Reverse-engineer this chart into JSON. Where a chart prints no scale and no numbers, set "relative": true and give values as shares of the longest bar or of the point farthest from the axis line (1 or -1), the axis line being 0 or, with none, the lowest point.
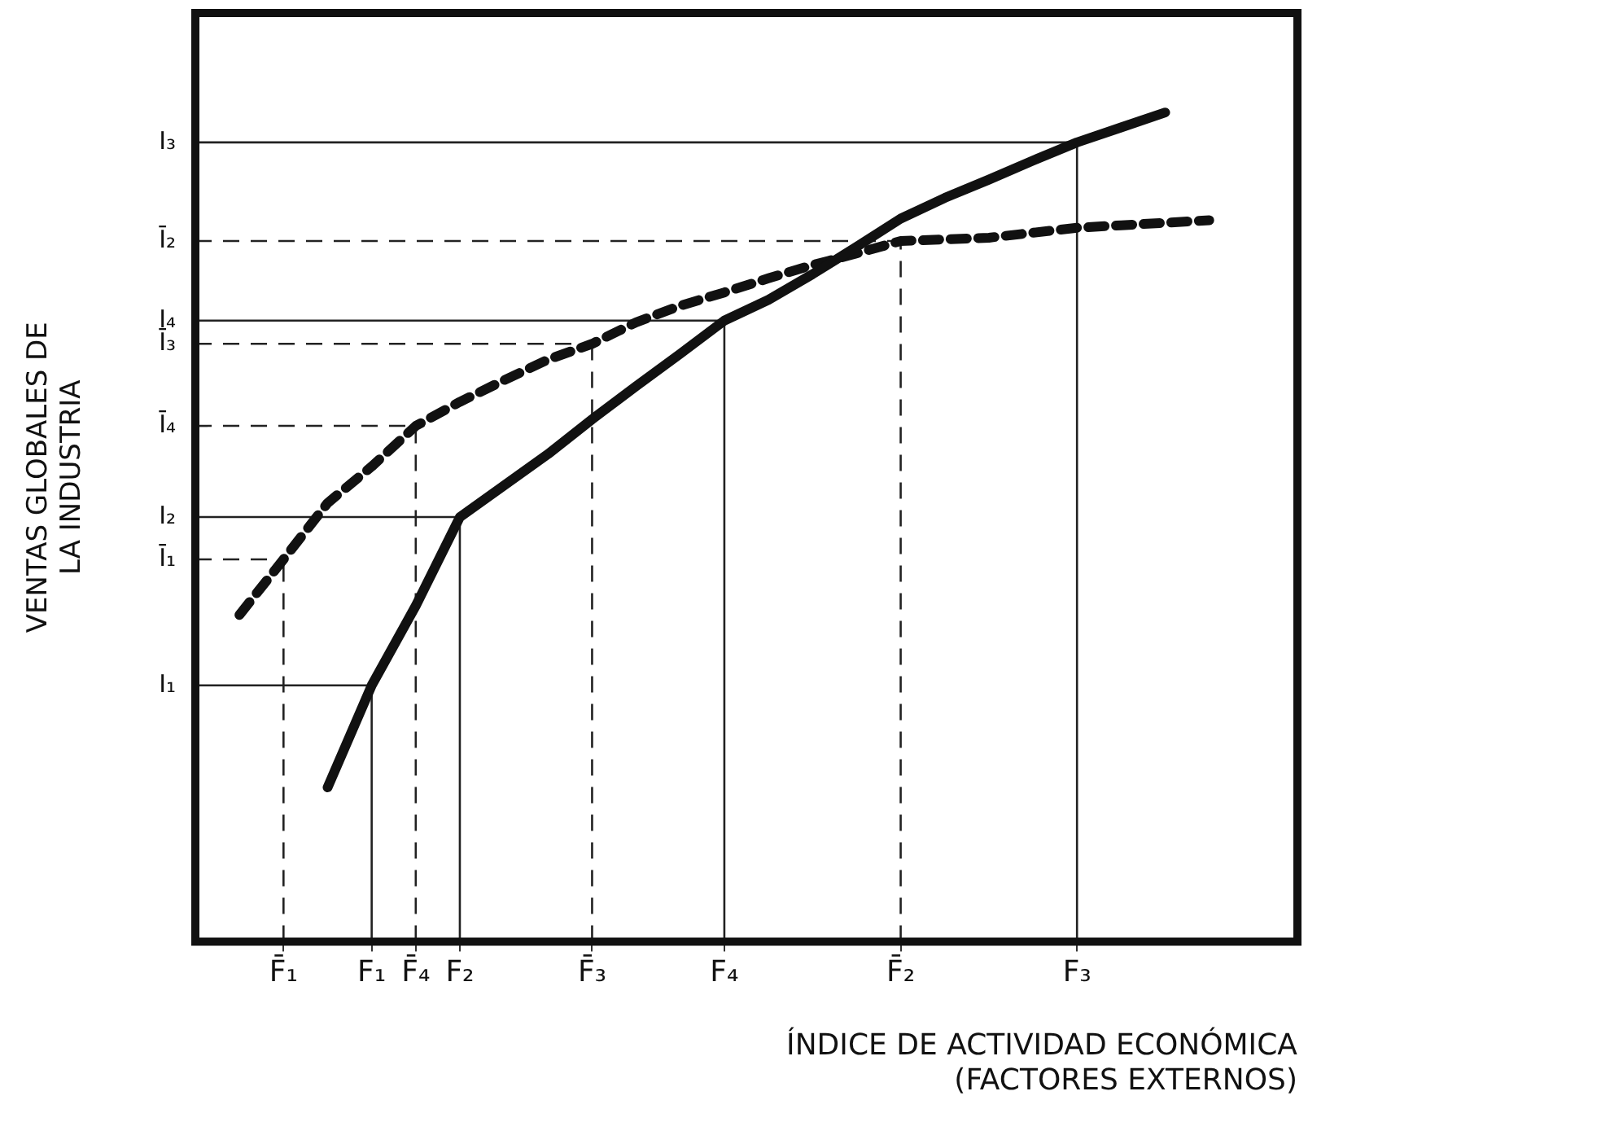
{
  "chart_data": {
    "type": "line",
    "relative": true,
    "xlabel": [
      "ÍNDICE DE ACTIVIDAD ECONÓMICA",
      "(FACTORES EXTERNOS)"
    ],
    "ylabel": [
      "VENTAS GLOBALES DE",
      "LA INDUSTRIA"
    ],
    "categories": [
      null,
      null,
      "F̄₁",
      null,
      "F₁",
      "F̄₄",
      "F₂",
      null,
      null,
      "F̄₃",
      null,
      null,
      "F₄",
      null,
      null,
      null,
      "F̄₂",
      null,
      null,
      null,
      "F₃",
      null,
      null,
      null,
      null,
      null
    ],
    "grid": false,
    "legend": false,
    "marker": "none",
    "series": [
      {
        "color": "#111111",
        "line_style": "solid",
        "values": [
          null,
          null,
          null,
          0.186,
          0.309,
          0.405,
          0.512,
          0.55,
          0.588,
          0.63,
          0.67,
          0.709,
          0.749,
          0.774,
          0.805,
          0.838,
          0.872,
          0.897,
          0.919,
          0.942,
          0.964,
          0.982,
          1,
          null,
          null,
          null
        ]
      },
      {
        "color": "#111111",
        "line_style": "dashed",
        "values": [
          null,
          0.394,
          0.461,
          0.529,
          0.573,
          0.622,
          0.651,
          0.677,
          0.702,
          0.721,
          0.747,
          0.767,
          0.783,
          0.8,
          0.816,
          0.83,
          0.845,
          0.847,
          0.849,
          0.855,
          0.861,
          0.864,
          0.867,
          0.87,
          null,
          null
        ]
      }
    ],
    "ref_lines": [
      {
        "axis": "x",
        "value": "F₁",
        "line_style": "solid",
        "color": "#222222"
      },
      {
        "axis": "x",
        "value": "F₂",
        "line_style": "solid",
        "color": "#222222"
      },
      {
        "axis": "x",
        "value": "F₄",
        "line_style": "solid",
        "color": "#222222"
      },
      {
        "axis": "x",
        "value": "F₃",
        "line_style": "solid",
        "color": "#222222"
      },
      {
        "axis": "x",
        "value": "F̄₁",
        "line_style": "dashed",
        "color": "#222222"
      },
      {
        "axis": "x",
        "value": "F̄₄",
        "line_style": "dashed",
        "color": "#222222"
      },
      {
        "axis": "x",
        "value": "F̄₃",
        "line_style": "dashed",
        "color": "#222222"
      },
      {
        "axis": "x",
        "value": "F̄₂",
        "line_style": "dashed",
        "color": "#222222"
      },
      {
        "axis": "y",
        "value": 0.309,
        "label": "I₁",
        "line_style": "solid",
        "color": "#222222"
      },
      {
        "axis": "y",
        "value": 0.512,
        "label": "I₂",
        "line_style": "solid",
        "color": "#222222"
      },
      {
        "axis": "y",
        "value": 0.749,
        "label": "I₄",
        "line_style": "solid",
        "color": "#222222"
      },
      {
        "axis": "y",
        "value": 0.964,
        "label": "I₃",
        "line_style": "solid",
        "color": "#222222"
      },
      {
        "axis": "y",
        "value": 0.461,
        "label": "Ī₁",
        "line_style": "dashed",
        "color": "#222222"
      },
      {
        "axis": "y",
        "value": 0.622,
        "label": "Ī₄",
        "line_style": "dashed",
        "color": "#222222"
      },
      {
        "axis": "y",
        "value": 0.721,
        "label": "Ī₃",
        "line_style": "dashed",
        "color": "#222222"
      },
      {
        "axis": "y",
        "value": 0.845,
        "label": "Ī₂",
        "line_style": "dashed",
        "color": "#222222"
      }
    ]
  }
}
